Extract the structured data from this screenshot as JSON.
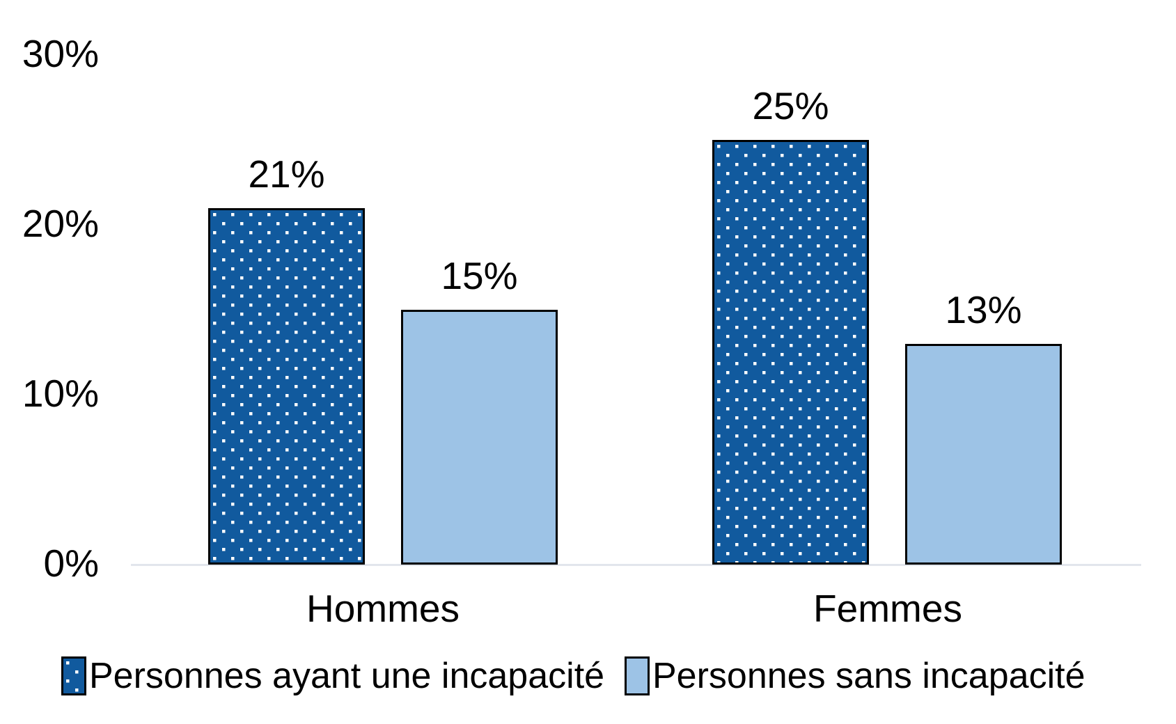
{
  "chart_data": {
    "type": "bar",
    "categories": [
      "Hommes",
      "Femmes"
    ],
    "series": [
      {
        "name": "Personnes ayant une incapacité",
        "values": [
          21,
          25
        ],
        "labels": [
          "21%",
          "25%"
        ],
        "fill": "#115a9e",
        "pattern": "white-dots",
        "border": "#000000"
      },
      {
        "name": "Personnes sans incapacité",
        "values": [
          15,
          13
        ],
        "labels": [
          "15%",
          "13%"
        ],
        "fill": "#9dc3e6",
        "pattern": "solid",
        "border": "#000000"
      }
    ],
    "y_ticks": [
      {
        "label": "30%",
        "value": 30
      },
      {
        "label": "20%",
        "value": 20
      },
      {
        "label": "10%",
        "value": 10
      },
      {
        "label": "0%",
        "value": 0
      }
    ],
    "ylim": [
      0,
      30
    ],
    "title": "",
    "xlabel": "",
    "ylabel": "",
    "grid": "off",
    "legend_position": "bottom",
    "data_labels": "outside-end"
  },
  "colors": {
    "bar_dark": "#115a9e",
    "bar_light": "#9dc3e6",
    "pattern_dot": "#ffffff",
    "bar_border": "#000000",
    "axis_line": "#e2e6ec",
    "text": "#000000",
    "background": "#ffffff"
  }
}
